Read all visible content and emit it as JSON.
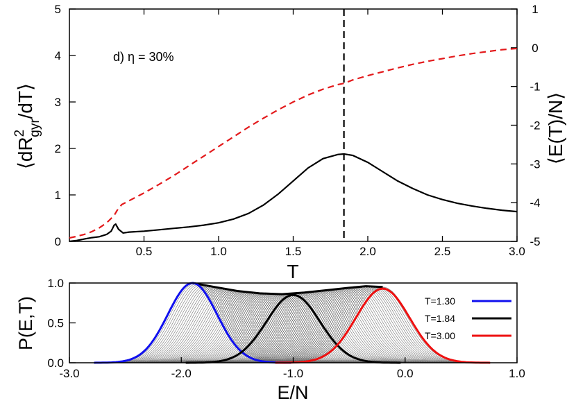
{
  "chart_data": [
    {
      "type": "line",
      "panel": "top",
      "annotation": "d) η = 30%",
      "xlabel": "T",
      "ylabel_left": {
        "prefix": "⟨dR",
        "sup": "2",
        "sub": "gyr",
        "suffix": "/dT⟩"
      },
      "ylabel_right": "⟨E(T)/N⟩",
      "xlim": [
        0.0,
        3.0
      ],
      "ylim_left": [
        0,
        5
      ],
      "ylim_right": [
        -5,
        1
      ],
      "xticks": [
        0.5,
        1.0,
        1.5,
        2.0,
        2.5,
        3.0
      ],
      "xtick_labels": [
        "0.5",
        "1.0",
        "1.5",
        "2.0",
        "2.5",
        "3.0"
      ],
      "yticks_left": [
        0,
        1,
        2,
        3,
        4,
        5
      ],
      "ytick_labels_left": [
        "0",
        "1",
        "2",
        "3",
        "4",
        "5"
      ],
      "yticks_right": [
        -5,
        -4,
        -3,
        -2,
        -1,
        0,
        1
      ],
      "ytick_labels_right": [
        "-5",
        "-4",
        "-3",
        "-2",
        "-1",
        "0",
        "1"
      ],
      "vline_x": 1.84,
      "series": [
        {
          "axis": "left",
          "style": "solid",
          "color": "#000000",
          "x": [
            0.0,
            0.05,
            0.1,
            0.15,
            0.2,
            0.25,
            0.28,
            0.3,
            0.31,
            0.33,
            0.36,
            0.4,
            0.5,
            0.6,
            0.7,
            0.8,
            0.9,
            1.0,
            1.1,
            1.2,
            1.3,
            1.4,
            1.5,
            1.6,
            1.7,
            1.8,
            1.84,
            1.9,
            2.0,
            2.1,
            2.2,
            2.3,
            2.4,
            2.5,
            2.6,
            2.7,
            2.8,
            2.9,
            3.0
          ],
          "y": [
            0.0,
            0.02,
            0.05,
            0.08,
            0.1,
            0.15,
            0.22,
            0.35,
            0.37,
            0.26,
            0.18,
            0.2,
            0.22,
            0.25,
            0.28,
            0.31,
            0.35,
            0.4,
            0.48,
            0.6,
            0.78,
            1.02,
            1.3,
            1.58,
            1.78,
            1.87,
            1.88,
            1.85,
            1.7,
            1.5,
            1.3,
            1.14,
            1.0,
            0.9,
            0.82,
            0.76,
            0.71,
            0.67,
            0.64
          ]
        },
        {
          "axis": "right",
          "style": "dashed",
          "color": "#e31a1c",
          "x": [
            0.0,
            0.05,
            0.1,
            0.15,
            0.2,
            0.25,
            0.3,
            0.32,
            0.35,
            0.4,
            0.5,
            0.6,
            0.7,
            0.8,
            0.9,
            1.0,
            1.1,
            1.2,
            1.3,
            1.4,
            1.5,
            1.6,
            1.7,
            1.8,
            1.84,
            1.9,
            2.0,
            2.1,
            2.2,
            2.3,
            2.4,
            2.5,
            2.6,
            2.7,
            2.8,
            2.9,
            3.0
          ],
          "y": [
            -4.91,
            -4.87,
            -4.82,
            -4.75,
            -4.65,
            -4.52,
            -4.33,
            -4.2,
            -4.05,
            -3.95,
            -3.75,
            -3.53,
            -3.3,
            -3.05,
            -2.8,
            -2.55,
            -2.3,
            -2.05,
            -1.82,
            -1.6,
            -1.4,
            -1.22,
            -1.07,
            -0.95,
            -0.92,
            -0.83,
            -0.72,
            -0.62,
            -0.52,
            -0.43,
            -0.35,
            -0.28,
            -0.21,
            -0.15,
            -0.1,
            -0.05,
            -0.02
          ]
        }
      ]
    },
    {
      "type": "line",
      "panel": "bottom",
      "xlabel": "E/N",
      "ylabel": "P(E,T)",
      "xlim": [
        -3.0,
        1.0
      ],
      "ylim": [
        0,
        1.0
      ],
      "xticks": [
        -3.0,
        -2.0,
        -1.0,
        0.0,
        1.0
      ],
      "xtick_labels": [
        "-3.0",
        "-2.0",
        "-1.0",
        "0.0",
        "1.0"
      ],
      "yticks": [
        0.0,
        0.5,
        1.0
      ],
      "ytick_labels": [
        "0.0",
        "0.5",
        "1.0"
      ],
      "fan_gray_curves": {
        "center_start": -1.9,
        "center_end": -0.2,
        "count": 85,
        "color": "#555555"
      },
      "series": [
        {
          "name": "T=1.30",
          "color": "#1010ee",
          "center": -1.9,
          "width": 0.22,
          "peak": 1.0
        },
        {
          "name": "T=1.84",
          "color": "#000000",
          "center": -1.0,
          "width": 0.24,
          "peak": 0.85
        },
        {
          "name": "T=3.00",
          "color": "#ee1010",
          "center": -0.2,
          "width": 0.24,
          "peak": 0.93
        }
      ],
      "envelope": {
        "color": "#000000",
        "x": [
          -1.9,
          -1.7,
          -1.5,
          -1.3,
          -1.1,
          -0.9,
          -0.7,
          -0.5,
          -0.35,
          -0.2
        ],
        "y": [
          1.0,
          0.95,
          0.9,
          0.87,
          0.86,
          0.88,
          0.91,
          0.94,
          0.96,
          0.95
        ]
      }
    }
  ]
}
